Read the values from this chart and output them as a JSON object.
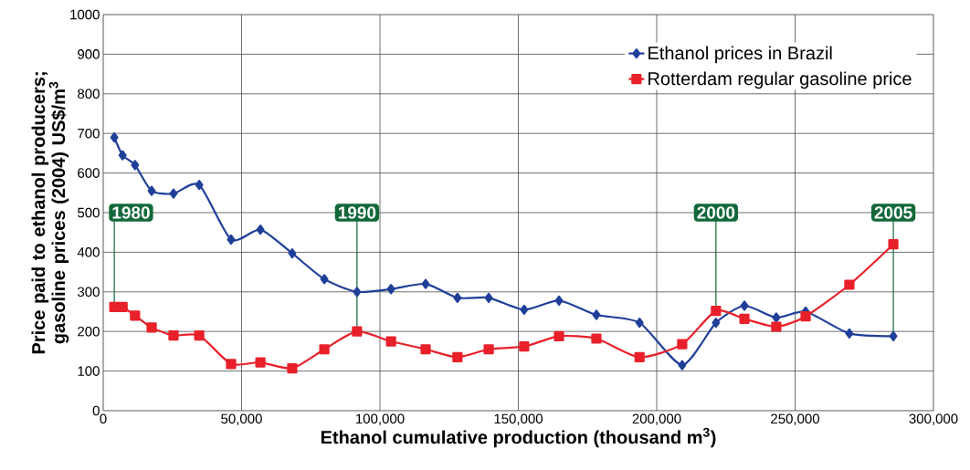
{
  "chart_data": {
    "type": "line",
    "xlabel": "Ethanol cumulative production (thousand m$^{3}$)",
    "ylabel": "Price paid to ethanol producers; gasoline prices (2004) US$/m$^{3}$",
    "x": [
      4000,
      7000,
      11500,
      17500,
      25400,
      34700,
      46200,
      56800,
      68300,
      79900,
      91700,
      104000,
      116500,
      128000,
      139300,
      152100,
      164700,
      178200,
      193800,
      209200,
      221400,
      231700,
      243200,
      253800,
      269600,
      285500
    ],
    "series": [
      {
        "name": "Ethanol prices in Brazil",
        "color": "#1f3f99",
        "marker": "diamond",
        "values": [
          690,
          645,
          620,
          555,
          548,
          570,
          432,
          457,
          397,
          332,
          300,
          307,
          320,
          285,
          285,
          255,
          278,
          242,
          222,
          115,
          222,
          265,
          235,
          250,
          195,
          188
        ]
      },
      {
        "name": "Rotterdam regular gasoline price",
        "color": "#e8202a",
        "marker": "square",
        "values": [
          262,
          262,
          240,
          210,
          190,
          190,
          118,
          122,
          107,
          155,
          200,
          175,
          155,
          135,
          155,
          162,
          188,
          182,
          135,
          168,
          252,
          232,
          212,
          238,
          318,
          420
        ]
      }
    ],
    "xlim": [
      0,
      300000
    ],
    "ylim": [
      0,
      1000
    ],
    "xticks": [
      0,
      {
        "value": 50000,
        "label": "50,000"
      },
      {
        "value": 100000,
        "label": "100,000"
      },
      {
        "value": 150000,
        "label": "150,000"
      },
      {
        "value": 200000,
        "label": "200,000"
      },
      {
        "value": 250000,
        "label": "250,000"
      },
      {
        "value": 300000,
        "label": "300,000"
      }
    ],
    "yticks": [
      0,
      100,
      200,
      300,
      400,
      500,
      600,
      700,
      800,
      900,
      1000
    ],
    "grid": true,
    "legend": "top right",
    "annotations": [
      {
        "text": "1980",
        "x": 4000,
        "y": 262
      },
      {
        "text": "1990",
        "x": 91700,
        "y": 200
      },
      {
        "text": "2000",
        "x": 221400,
        "y": 252
      },
      {
        "text": "2005",
        "x": 285500,
        "y": 188
      }
    ]
  }
}
